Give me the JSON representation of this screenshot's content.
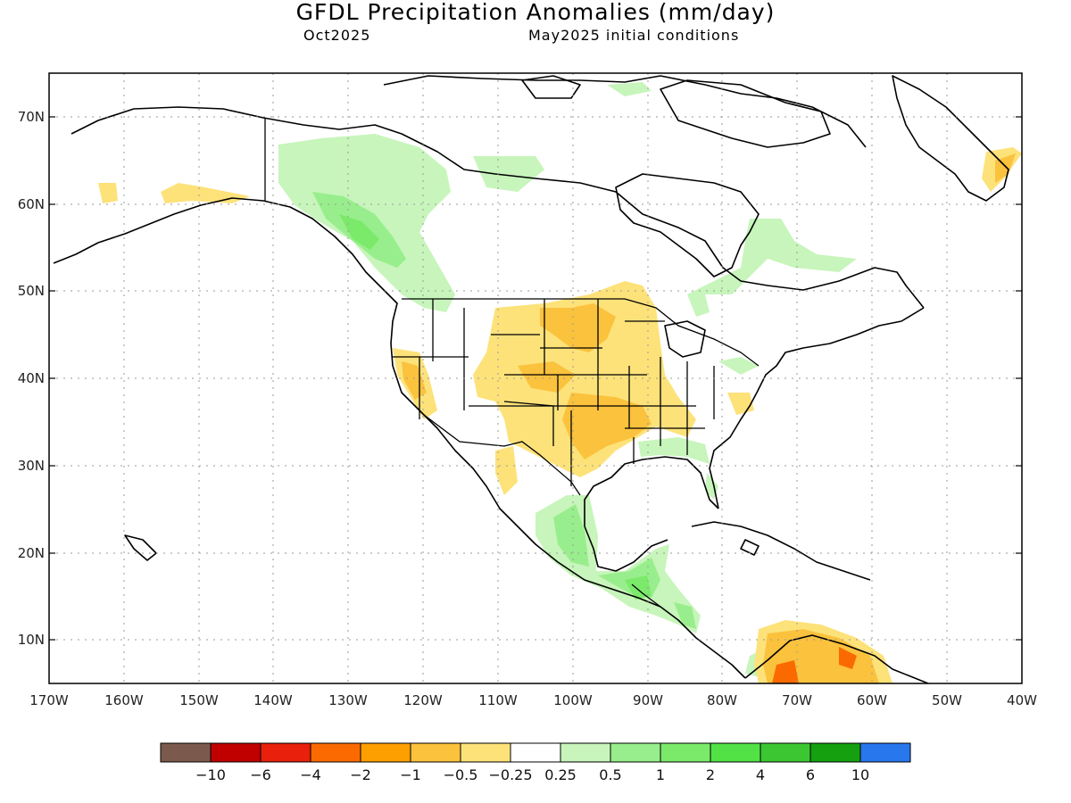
{
  "header": {
    "title": "GFDL Precipitation Anomalies (mm/day)",
    "month": "Oct2025",
    "init": "May2025 initial conditions"
  },
  "axes": {
    "lat_ticks": [
      "70N",
      "60N",
      "50N",
      "40N",
      "30N",
      "20N",
      "10N"
    ],
    "lon_ticks": [
      "170W",
      "160W",
      "150W",
      "140W",
      "130W",
      "120W",
      "110W",
      "100W",
      "90W",
      "80W",
      "70W",
      "60W",
      "50W",
      "40W"
    ],
    "lon_range": [
      -170,
      -40
    ],
    "lat_range": [
      5,
      75
    ]
  },
  "colorbar": {
    "colors": [
      "#7b5a4d",
      "#c00000",
      "#e8200c",
      "#fb6a00",
      "#fd9f00",
      "#fbc23d",
      "#fde27a",
      "#ffffff",
      "#c7f5bb",
      "#98ee8c",
      "#7bea6a",
      "#52e246",
      "#3cc732",
      "#14a00f",
      "#2877ed"
    ],
    "labels": [
      "−10",
      "−6",
      "−4",
      "−2",
      "−1",
      "−0.5",
      "−0.25",
      "0.25",
      "0.5",
      "1",
      "2",
      "4",
      "6",
      "10"
    ]
  },
  "anomaly_colors": {
    "light_green": "#c7f5bb",
    "green": "#98ee8c",
    "mid_green": "#7bea6a",
    "bright_green": "#52e246",
    "light_orange": "#fde27a",
    "orange": "#fbc23d",
    "dark_orange": "#fd9f00",
    "red_orange": "#fb6a00"
  }
}
